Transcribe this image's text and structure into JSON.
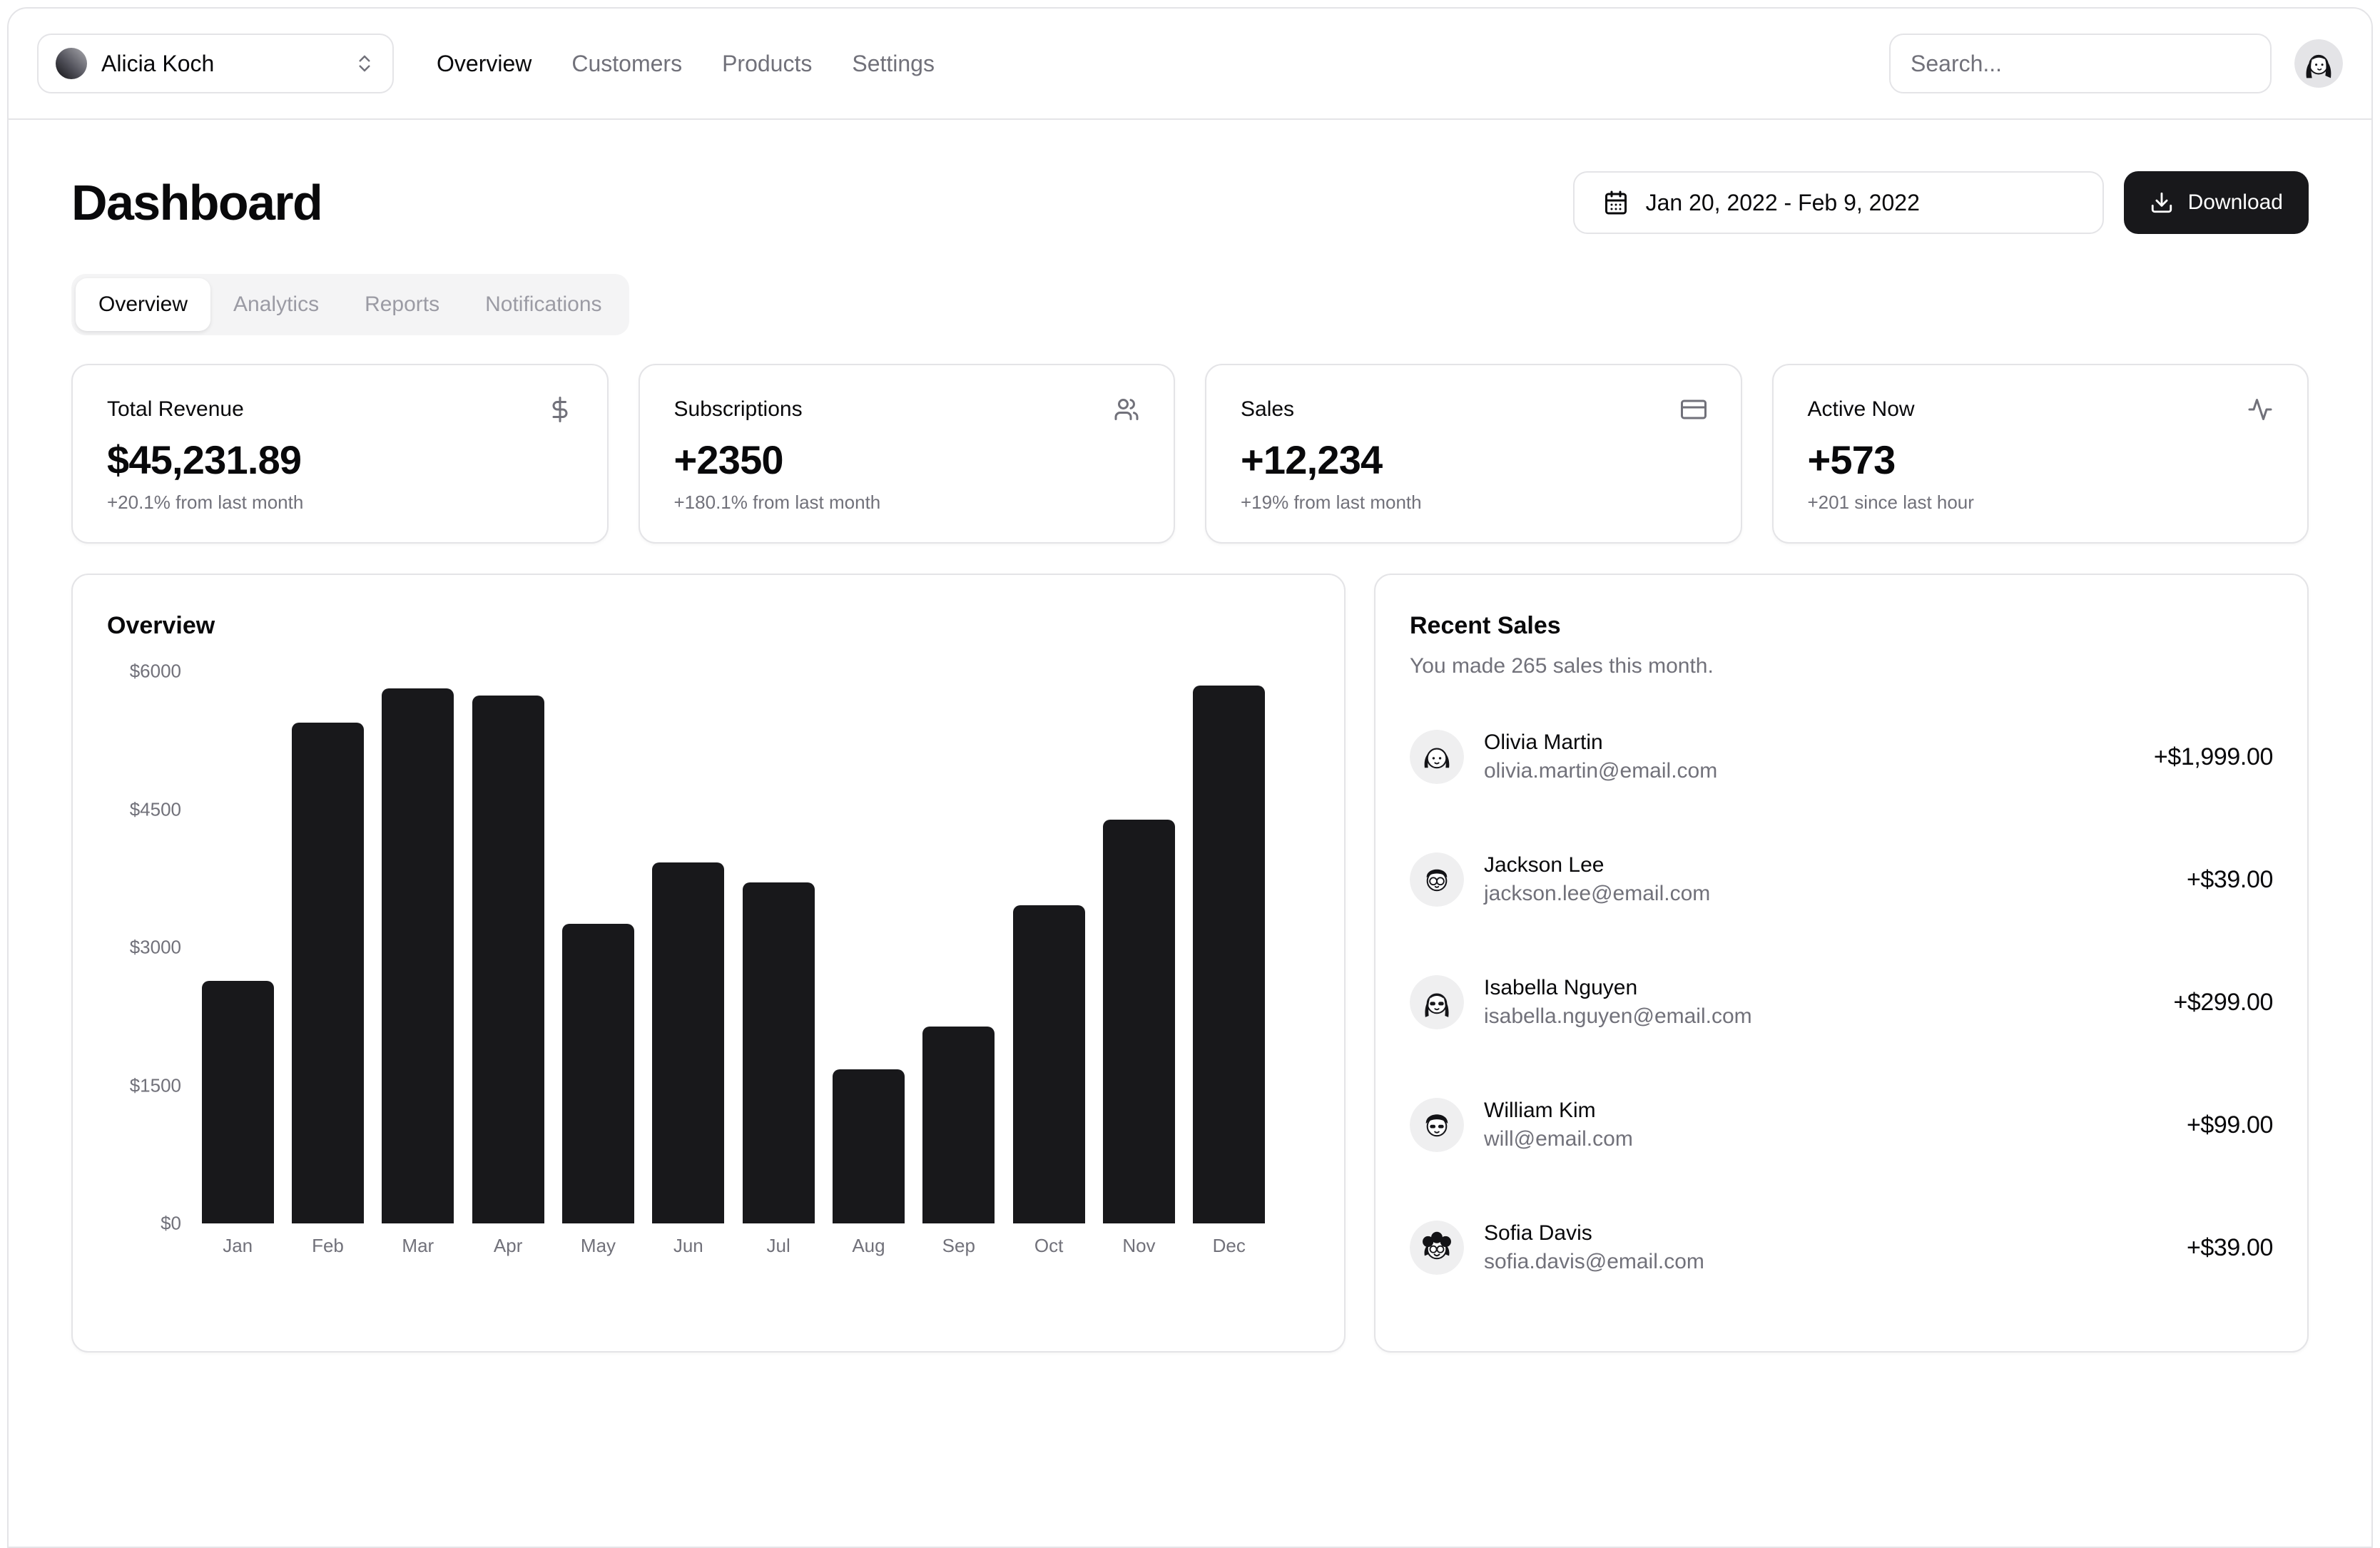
{
  "colors": {
    "accent": "#18181b",
    "border": "#e4e4e7",
    "muted": "#71717a",
    "bar": "#18181b"
  },
  "nav": {
    "team_name": "Alicia Koch",
    "links": [
      {
        "label": "Overview",
        "active": true
      },
      {
        "label": "Customers",
        "active": false
      },
      {
        "label": "Products",
        "active": false
      },
      {
        "label": "Settings",
        "active": false
      }
    ],
    "search_placeholder": "Search..."
  },
  "header": {
    "title": "Dashboard",
    "date_range": "Jan 20, 2022 - Feb 9, 2022",
    "download_label": "Download"
  },
  "tabs": [
    {
      "label": "Overview",
      "active": true
    },
    {
      "label": "Analytics",
      "active": false
    },
    {
      "label": "Reports",
      "active": false
    },
    {
      "label": "Notifications",
      "active": false
    }
  ],
  "stats": [
    {
      "title": "Total Revenue",
      "icon": "dollar-sign-icon",
      "value": "$45,231.89",
      "change": "+20.1% from last month"
    },
    {
      "title": "Subscriptions",
      "icon": "users-icon",
      "value": "+2350",
      "change": "+180.1% from last month"
    },
    {
      "title": "Sales",
      "icon": "credit-card-icon",
      "value": "+12,234",
      "change": "+19% from last month"
    },
    {
      "title": "Active Now",
      "icon": "activity-icon",
      "value": "+573",
      "change": "+201 since last hour"
    }
  ],
  "chart_data": {
    "type": "bar",
    "title": "Overview",
    "categories": [
      "Jan",
      "Feb",
      "Mar",
      "Apr",
      "May",
      "Jun",
      "Jul",
      "Aug",
      "Sep",
      "Oct",
      "Nov",
      "Dec"
    ],
    "values": [
      2640,
      5440,
      5820,
      5740,
      3250,
      3920,
      3710,
      1670,
      2140,
      3460,
      4390,
      5840
    ],
    "ylim": [
      0,
      6000
    ],
    "yticks": [
      "$6000",
      "$4500",
      "$3000",
      "$1500",
      "$0"
    ],
    "ytick_values": [
      6000,
      4500,
      3000,
      1500,
      0
    ],
    "currency_prefix": "$",
    "grid": false,
    "legend": false,
    "bar_color": "#18181b",
    "xlabel": "",
    "ylabel": ""
  },
  "recent_sales": {
    "title": "Recent Sales",
    "subtitle": "You made 265 sales this month.",
    "items": [
      {
        "name": "Olivia Martin",
        "email": "olivia.martin@email.com",
        "amount": "+$1,999.00"
      },
      {
        "name": "Jackson Lee",
        "email": "jackson.lee@email.com",
        "amount": "+$39.00"
      },
      {
        "name": "Isabella Nguyen",
        "email": "isabella.nguyen@email.com",
        "amount": "+$299.00"
      },
      {
        "name": "William Kim",
        "email": "will@email.com",
        "amount": "+$99.00"
      },
      {
        "name": "Sofia Davis",
        "email": "sofia.davis@email.com",
        "amount": "+$39.00"
      }
    ]
  }
}
